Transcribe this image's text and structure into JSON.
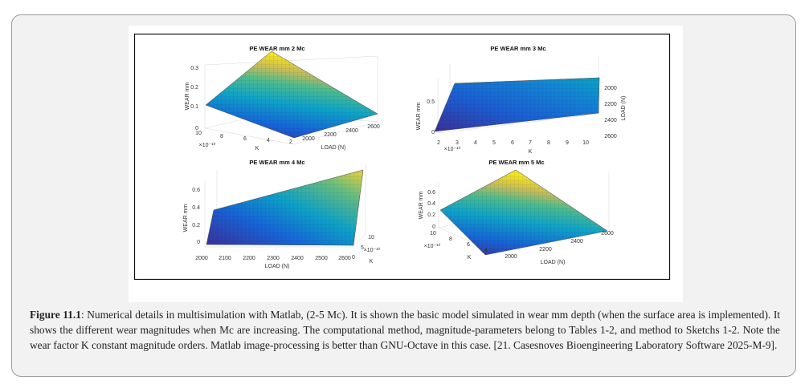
{
  "figure": {
    "panels": [
      {
        "title": "PE WEAR mm 2 Mc",
        "zlabel": "WEAR mm",
        "klabel": "K",
        "loadlabel": "LOAD (N)",
        "exponent": "×10⁻¹⁰",
        "zticks": [
          "0",
          "0.1",
          "0.2",
          "0.3"
        ],
        "kticks": [
          "10",
          "8",
          "6",
          "4",
          "2"
        ],
        "loadticks": [
          "2000",
          "2200",
          "2400",
          "2600"
        ]
      },
      {
        "title": "PE WEAR mm 3 Mc",
        "zlabel": "WEAR mm",
        "klabel": "K",
        "loadlabel": "LOAD (N)",
        "exponent": "×10⁻¹⁰",
        "zticks": [
          "0",
          "0.5"
        ],
        "kticks": [
          "2",
          "3",
          "4",
          "5",
          "6",
          "7",
          "8",
          "9",
          "10"
        ],
        "loadticks": [
          "2000",
          "2200",
          "2400",
          "2600"
        ]
      },
      {
        "title": "PE WEAR mm 4 Mc",
        "zlabel": "WEAR mm",
        "klabel": "K",
        "loadlabel": "LOAD (N)",
        "exponent": "×10⁻¹⁰",
        "zticks": [
          "0",
          "0.2",
          "0.4",
          "0.6"
        ],
        "kticks": [
          "10",
          "5",
          "0"
        ],
        "loadticks": [
          "2000",
          "2100",
          "2200",
          "2300",
          "2400",
          "2500",
          "2600"
        ]
      },
      {
        "title": "PE WEAR mm 5 Mc",
        "zlabel": "WEAR mm",
        "klabel": "K",
        "loadlabel": "LOAD (N)",
        "exponent": "×10⁻¹⁰",
        "zticks": [
          "0",
          "0.2",
          "0.4",
          "0.6"
        ],
        "kticks": [
          "10",
          "8",
          "6",
          "4"
        ],
        "loadticks": [
          "2000",
          "2200",
          "2400",
          "2600"
        ]
      }
    ]
  },
  "caption": {
    "label": "Figure 11.1",
    "text": ": Numerical details in multisimulation with Matlab, (2-5 Mc). It is shown the basic model simulated in wear mm depth (when the surface area is implemented). It shows the different wear magnitudes when Mc are increasing. The computational method, magnitude-parameters belong to Tables 1-2, and method to Sketchs 1-2. Note the wear factor K constant magnitude orders. Matlab image-processing is better than GNU-Octave in this case. [21. Casesnoves Bioengineering Laboratory Software 2025-M-9]."
  }
}
